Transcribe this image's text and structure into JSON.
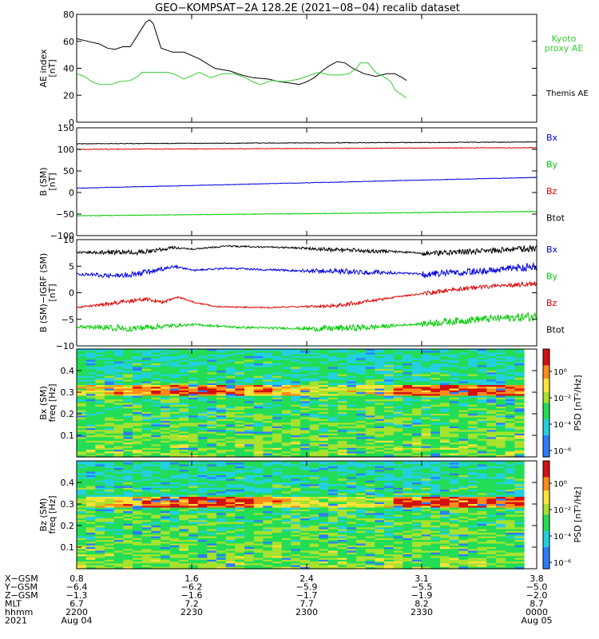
{
  "title": "GEO−KOMPSAT−2A 128.2E (2021−08−04) recalib dataset",
  "colors": {
    "black": "#000000",
    "red": "#e00000",
    "blue": "#0000e0",
    "green": "#00cc00",
    "kyoto": "#33cc33"
  },
  "chart_data": [
    {
      "type": "line",
      "ylabel": [
        "AE index",
        "[nT]"
      ],
      "ylim": [
        0,
        80
      ],
      "yticks": [
        "0",
        "20",
        "40",
        "60",
        "80"
      ],
      "legend": [
        "Kyoto",
        "proxy AE",
        "Themis AE"
      ],
      "series": [
        {
          "name": "Themis AE",
          "color": "#000000",
          "points": [
            [
              0,
              62
            ],
            [
              3,
              60
            ],
            [
              6,
              58
            ],
            [
              8,
              55
            ],
            [
              10,
              54
            ],
            [
              12,
              56
            ],
            [
              14,
              56
            ],
            [
              16,
              65
            ],
            [
              18,
              74
            ],
            [
              19,
              76
            ],
            [
              20,
              73
            ],
            [
              22,
              55
            ],
            [
              25,
              52
            ],
            [
              28,
              52
            ],
            [
              32,
              47
            ],
            [
              36,
              40
            ],
            [
              40,
              38
            ],
            [
              43,
              35
            ],
            [
              46,
              33
            ],
            [
              50,
              32
            ],
            [
              53,
              30
            ],
            [
              56,
              29
            ],
            [
              58,
              28
            ],
            [
              60,
              30
            ],
            [
              62,
              33
            ],
            [
              64,
              38
            ],
            [
              66,
              42
            ],
            [
              68,
              45
            ],
            [
              70,
              44
            ],
            [
              72,
              40
            ],
            [
              75,
              36
            ],
            [
              78,
              34
            ],
            [
              81,
              36
            ],
            [
              83,
              36
            ],
            [
              85,
              33
            ],
            [
              86,
              31
            ]
          ]
        },
        {
          "name": "Kyoto proxy AE",
          "color": "#33cc33",
          "points": [
            [
              0,
              36
            ],
            [
              2,
              34
            ],
            [
              4,
              30
            ],
            [
              6,
              28
            ],
            [
              9,
              28
            ],
            [
              11,
              30
            ],
            [
              14,
              31
            ],
            [
              16,
              34
            ],
            [
              17,
              37
            ],
            [
              20,
              37
            ],
            [
              24,
              37
            ],
            [
              26,
              35
            ],
            [
              28,
              32
            ],
            [
              32,
              37
            ],
            [
              35,
              33
            ],
            [
              38,
              36
            ],
            [
              41,
              36
            ],
            [
              44,
              33
            ],
            [
              46,
              30
            ],
            [
              48,
              28
            ],
            [
              51,
              31
            ],
            [
              54,
              30
            ],
            [
              58,
              32
            ],
            [
              61,
              35
            ],
            [
              63,
              37
            ],
            [
              66,
              35
            ],
            [
              69,
              35
            ],
            [
              71,
              36
            ],
            [
              73,
              40
            ],
            [
              74,
              44
            ],
            [
              76,
              44
            ],
            [
              78,
              37
            ],
            [
              80,
              34
            ],
            [
              82,
              30
            ],
            [
              83,
              24
            ],
            [
              86,
              18
            ]
          ]
        }
      ]
    },
    {
      "type": "line",
      "ylabel": [
        "B (SM)",
        "[nT]"
      ],
      "ylim": [
        -100,
        150
      ],
      "yticks": [
        "−100",
        "−50",
        "0",
        "50",
        "100",
        "150"
      ],
      "legend": [
        "Bx",
        "By",
        "Bz",
        "Btot"
      ],
      "series": [
        {
          "name": "Btot",
          "color": "#000000",
          "from": 113,
          "to": 117,
          "noise": 0.8
        },
        {
          "name": "Bz",
          "color": "#e00000",
          "from": 100,
          "to": 104,
          "noise": 0.8
        },
        {
          "name": "Bx",
          "color": "#0000e0",
          "from": 10,
          "to": 35,
          "noise": 0.7
        },
        {
          "name": "By",
          "color": "#00cc00",
          "from": -54,
          "to": -44,
          "noise": 0.8
        }
      ]
    },
    {
      "type": "line",
      "ylabel": [
        "B (SM)−IGRF (SM)",
        "[nT]"
      ],
      "ylim": [
        -10,
        10
      ],
      "yticks": [
        "−10",
        "−5",
        "0",
        "5",
        "10"
      ],
      "legend": [
        "Bx",
        "By",
        "Bz",
        "Btot"
      ],
      "series": [
        {
          "name": "Btot",
          "color": "#000000",
          "noise": 0.25,
          "base": [
            [
              0,
              7.6
            ],
            [
              12,
              7.6
            ],
            [
              18,
              8.5
            ],
            [
              22,
              8.2
            ],
            [
              28,
              8.8
            ],
            [
              40,
              8.5
            ],
            [
              50,
              8.0
            ],
            [
              58,
              7.8
            ],
            [
              66,
              7.4
            ],
            [
              75,
              7.8
            ],
            [
              86,
              8.4
            ]
          ]
        },
        {
          "name": "Bx",
          "color": "#0000e0",
          "noise": 0.3,
          "base": [
            [
              0,
              3.5
            ],
            [
              8,
              3.2
            ],
            [
              14,
              4.0
            ],
            [
              18,
              5.0
            ],
            [
              22,
              4.2
            ],
            [
              28,
              4.6
            ],
            [
              40,
              4.2
            ],
            [
              50,
              4.0
            ],
            [
              58,
              3.8
            ],
            [
              65,
              3.5
            ],
            [
              75,
              4.0
            ],
            [
              86,
              5.0
            ]
          ]
        },
        {
          "name": "Bz",
          "color": "#e00000",
          "noise": 0.2,
          "base": [
            [
              0,
              -2.8
            ],
            [
              8,
              -1.8
            ],
            [
              13,
              -1.2
            ],
            [
              16,
              -1.8
            ],
            [
              19,
              -0.8
            ],
            [
              22,
              -1.8
            ],
            [
              26,
              -2.6
            ],
            [
              35,
              -2.8
            ],
            [
              48,
              -2.5
            ],
            [
              55,
              -1.5
            ],
            [
              62,
              -0.5
            ],
            [
              70,
              0.5
            ],
            [
              78,
              1.3
            ],
            [
              86,
              1.8
            ]
          ]
        },
        {
          "name": "By",
          "color": "#00cc00",
          "noise": 0.35,
          "base": [
            [
              0,
              -6.4
            ],
            [
              10,
              -6.7
            ],
            [
              18,
              -6.2
            ],
            [
              22,
              -6.0
            ],
            [
              30,
              -6.5
            ],
            [
              45,
              -6.8
            ],
            [
              55,
              -6.5
            ],
            [
              65,
              -5.8
            ],
            [
              75,
              -5.0
            ],
            [
              86,
              -4.5
            ]
          ]
        }
      ]
    },
    {
      "type": "heatmap",
      "ylabel": [
        "Bx (SM)",
        "freq [Hz]"
      ],
      "ylim": [
        0,
        0.5
      ],
      "yticks": [
        "0.1",
        "0.2",
        "0.3",
        "0.4"
      ],
      "colorbar_label": "PSD [nT²/Hz]",
      "colorbar_ticks": [
        "10⁰",
        "10⁻²",
        "10⁻⁴",
        "10⁻⁶"
      ],
      "hot_band": [
        0.28,
        0.33
      ]
    },
    {
      "type": "heatmap",
      "ylabel": [
        "Bz (SM)",
        "freq [Hz]"
      ],
      "ylim": [
        0,
        0.5
      ],
      "yticks": [
        "0.1",
        "0.2",
        "0.3",
        "0.4"
      ],
      "colorbar_label": "PSD [nT²/Hz]",
      "colorbar_ticks": [
        "10⁰",
        "10⁻²",
        "10⁻⁴",
        "10⁻⁶"
      ],
      "hot_band": [
        0.28,
        0.33
      ]
    }
  ],
  "x_axis": {
    "row_labels": [
      "X−GSM",
      "Y−GSM",
      "Z−GSM",
      "MLT",
      "hhmm",
      "2021"
    ],
    "ticks": [
      {
        "t": 0,
        "values": [
          "0.8",
          "−6.4",
          "−1.3",
          "6.7",
          "2200",
          "Aug 04"
        ]
      },
      {
        "t": 30,
        "values": [
          "1.6",
          "−6.2",
          "−1.6",
          "7.2",
          "2230",
          ""
        ]
      },
      {
        "t": 60,
        "values": [
          "2.4",
          "−5.9",
          "−1.7",
          "7.7",
          "2300",
          ""
        ]
      },
      {
        "t": 90,
        "values": [
          "3.1",
          "−5.5",
          "−1.9",
          "8.2",
          "2330",
          ""
        ]
      },
      {
        "t": 120,
        "values": [
          "3.8",
          "−5.0",
          "−2.0",
          "8.7",
          "0000",
          "Aug 05"
        ]
      }
    ]
  }
}
